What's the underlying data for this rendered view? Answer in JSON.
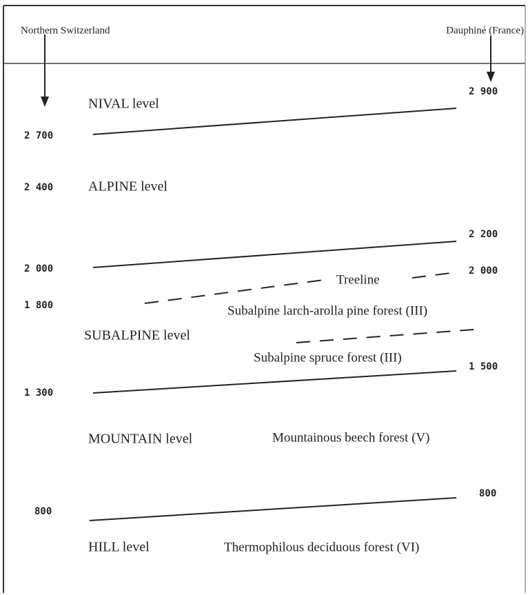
{
  "header": {
    "left": "Northern Switzerland",
    "right": "Dauphiné (France)"
  },
  "elevations_left": [
    "2 700",
    "2 400",
    "2 000",
    "1 800",
    "1 300",
    "800"
  ],
  "elevations_right": [
    "2 900",
    "2 200",
    "2 000",
    "1 500",
    "800"
  ],
  "levels": [
    "NIVAL level",
    "ALPINE level",
    "SUBALPINE level",
    "MOUNTAIN level",
    "HILL level"
  ],
  "treeline": "Treeline",
  "forests": [
    "Subalpine larch-arolla pine forest (III)",
    "Subalpine spruce forest (III)",
    "Mountainous beech forest (V)",
    "Thermophilous deciduous forest (VI)"
  ]
}
